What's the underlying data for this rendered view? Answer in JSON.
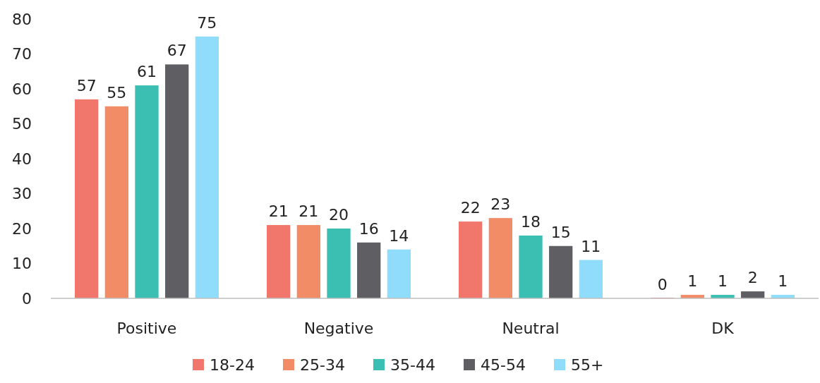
{
  "chart_data": {
    "type": "bar",
    "categories": [
      "Positive",
      "Negative",
      "Neutral",
      "DK"
    ],
    "series": [
      {
        "name": "18-24",
        "color": "#f1766c",
        "values": [
          57,
          21,
          22,
          0
        ]
      },
      {
        "name": "25-34",
        "color": "#f28c66",
        "values": [
          55,
          21,
          23,
          1
        ]
      },
      {
        "name": "35-44",
        "color": "#3bbfb2",
        "values": [
          61,
          20,
          18,
          1
        ]
      },
      {
        "name": "45-54",
        "color": "#5f5f63",
        "values": [
          67,
          16,
          15,
          2
        ]
      },
      {
        "name": "55+",
        "color": "#8fdcfb",
        "values": [
          75,
          14,
          11,
          1
        ]
      }
    ],
    "ylim": [
      0,
      80
    ],
    "yticks": [
      0,
      10,
      20,
      30,
      40,
      50,
      60,
      70,
      80
    ],
    "grid": false,
    "data_labels": true,
    "legend": "bottom"
  }
}
